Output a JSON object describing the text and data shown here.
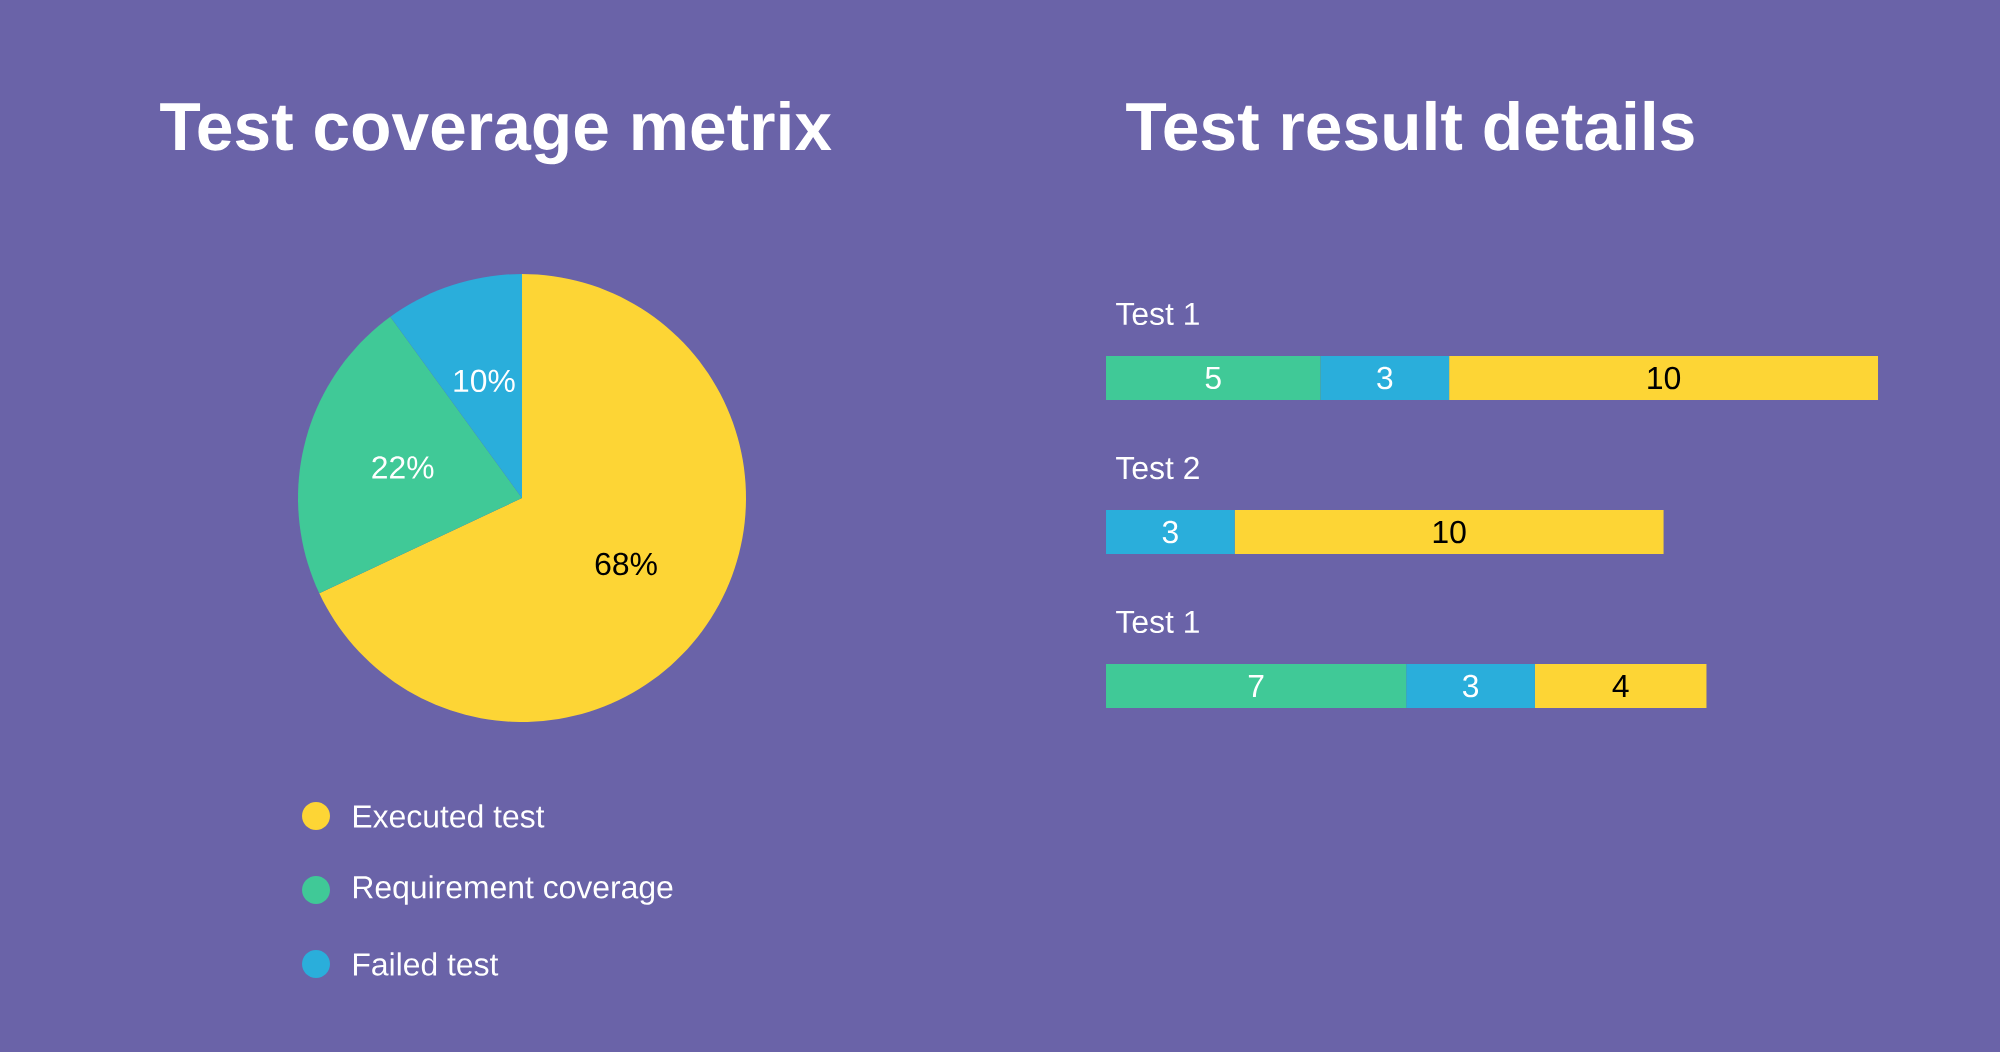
{
  "chart_data": [
    {
      "type": "pie",
      "title": "Test coverage metrix",
      "categories": [
        "Executed test",
        "Requirement coverage",
        "Failed test"
      ],
      "values": [
        68,
        22,
        10
      ],
      "colors": [
        "#fdd535",
        "#40c997",
        "#2aaedb"
      ],
      "value_labels": [
        "68%",
        "22%",
        "10%"
      ],
      "legend": "bottom"
    },
    {
      "type": "bar",
      "title": "Test result details",
      "orientation": "horizontal",
      "stacked": true,
      "categories": [
        "Test 1",
        "Test 2",
        "Test 1"
      ],
      "series": [
        {
          "color": "#40c997",
          "values": [
            5,
            null,
            7
          ],
          "value_labels": [
            "5",
            null,
            "7"
          ]
        },
        {
          "color": "#2aaedb",
          "values": [
            3,
            3,
            3
          ],
          "value_labels": [
            "3",
            "3",
            "3"
          ]
        },
        {
          "color": "#fdd535",
          "values": [
            10,
            10,
            4
          ],
          "value_labels": [
            "10",
            "10",
            "4"
          ]
        }
      ]
    }
  ]
}
